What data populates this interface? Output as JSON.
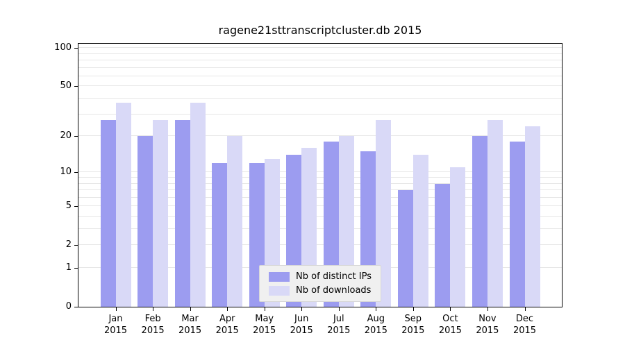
{
  "chart_data": {
    "type": "bar",
    "title": "ragene21sttranscriptcluster.db 2015",
    "year": "2015",
    "categories": [
      "Jan",
      "Feb",
      "Mar",
      "Apr",
      "May",
      "Jun",
      "Jul",
      "Aug",
      "Sep",
      "Oct",
      "Nov",
      "Dec"
    ],
    "series": [
      {
        "name": "Nb of distinct IPs",
        "color": "#9c9cf0",
        "values": [
          27,
          20,
          27,
          12,
          12,
          14,
          18,
          15,
          7,
          8,
          20,
          18
        ]
      },
      {
        "name": "Nb of downloads",
        "color": "#d9d9f7",
        "values": [
          37,
          27,
          37,
          20,
          13,
          16,
          20,
          27,
          14,
          11,
          27,
          24
        ]
      }
    ],
    "y_axis": {
      "scale": "log10(value+1)",
      "ticks": [
        0,
        1,
        2,
        5,
        10,
        20,
        50,
        100
      ],
      "minor_gridlines": [
        1,
        2,
        3,
        4,
        5,
        6,
        7,
        8,
        9,
        10,
        20,
        30,
        40,
        50,
        60,
        70,
        80,
        90,
        100
      ],
      "ylim": [
        0,
        108
      ]
    },
    "grid": true,
    "legend_position": "bottom-center",
    "colors": {
      "axis": "#000000",
      "grid": "#e6e6e6",
      "legend_bg": "#f0f0f0",
      "legend_border": "#d8d8d8"
    }
  }
}
